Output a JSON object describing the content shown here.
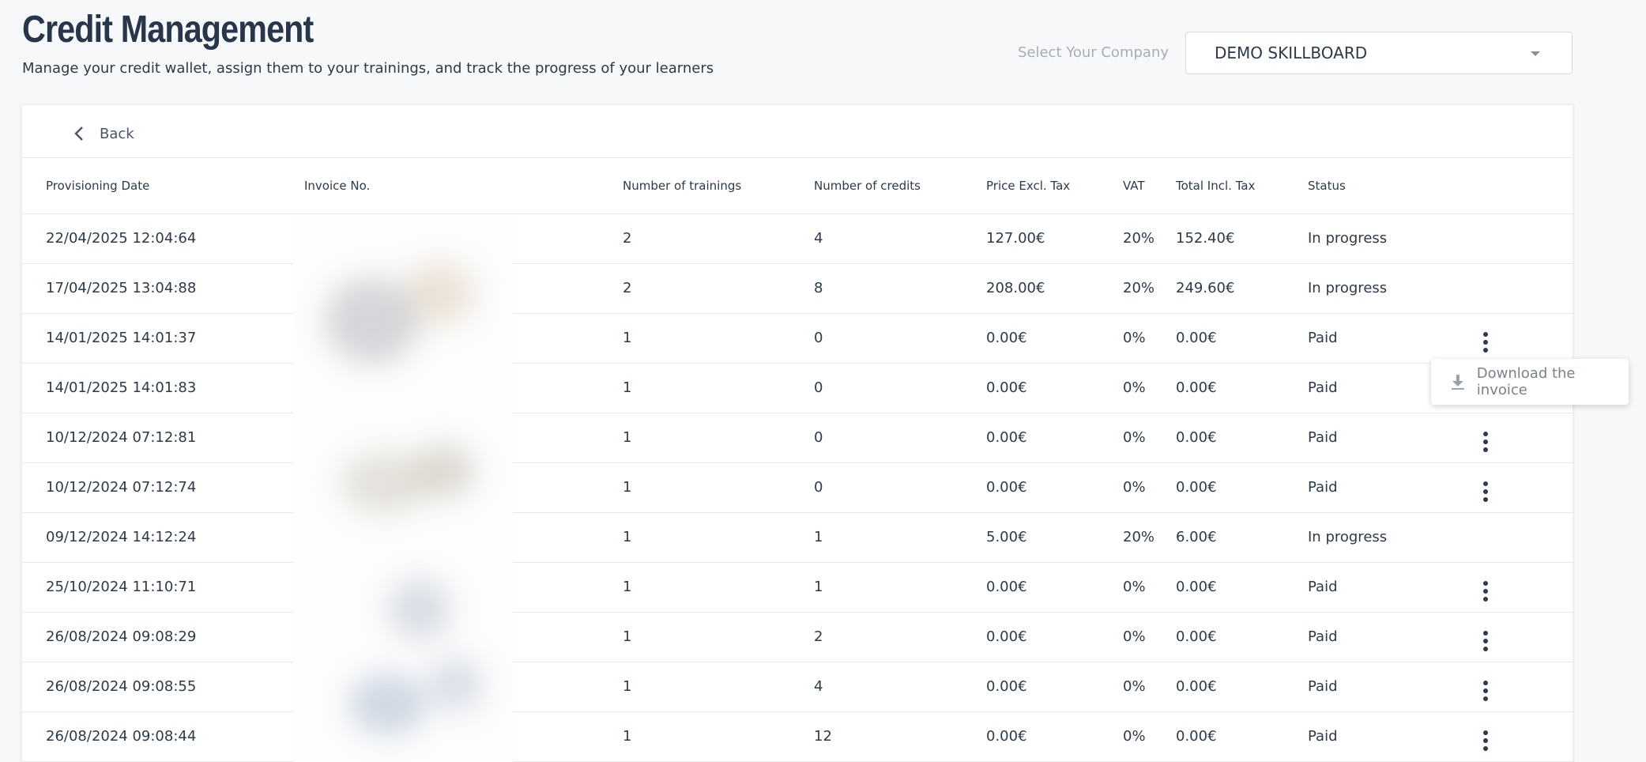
{
  "header": {
    "title": "Credit Management",
    "subtitle": "Manage your credit wallet, assign them to your trainings, and track the progress of your learners",
    "company_label": "Select Your Company",
    "company_value": "DEMO SKILLBOARD"
  },
  "back_label": "Back",
  "table": {
    "columns": [
      "Provisioning Date",
      "Invoice No.",
      "Number of trainings",
      "Number of credits",
      "Price Excl. Tax",
      "VAT",
      "Total Incl. Tax",
      "Status"
    ],
    "rows": [
      {
        "date": "22/04/2025 12:04:64",
        "invoice": "",
        "trainings": "2",
        "credits": "4",
        "price": "127.00€",
        "vat": "20%",
        "total": "152.40€",
        "status": "In progress",
        "menu": false
      },
      {
        "date": "17/04/2025 13:04:88",
        "invoice": "",
        "trainings": "2",
        "credits": "8",
        "price": "208.00€",
        "vat": "20%",
        "total": "249.60€",
        "status": "In progress",
        "menu": false
      },
      {
        "date": "14/01/2025 14:01:37",
        "invoice": "",
        "trainings": "1",
        "credits": "0",
        "price": "0.00€",
        "vat": "0%",
        "total": "0.00€",
        "status": "Paid",
        "menu": true
      },
      {
        "date": "14/01/2025 14:01:83",
        "invoice": "",
        "trainings": "1",
        "credits": "0",
        "price": "0.00€",
        "vat": "0%",
        "total": "0.00€",
        "status": "Paid",
        "menu": false
      },
      {
        "date": "10/12/2024 07:12:81",
        "invoice": "",
        "trainings": "1",
        "credits": "0",
        "price": "0.00€",
        "vat": "0%",
        "total": "0.00€",
        "status": "Paid",
        "menu": true
      },
      {
        "date": "10/12/2024 07:12:74",
        "invoice": "",
        "trainings": "1",
        "credits": "0",
        "price": "0.00€",
        "vat": "0%",
        "total": "0.00€",
        "status": "Paid",
        "menu": true
      },
      {
        "date": "09/12/2024 14:12:24",
        "invoice": "",
        "trainings": "1",
        "credits": "1",
        "price": "5.00€",
        "vat": "20%",
        "total": "6.00€",
        "status": "In progress",
        "menu": false
      },
      {
        "date": "25/10/2024 11:10:71",
        "invoice": "",
        "trainings": "1",
        "credits": "1",
        "price": "0.00€",
        "vat": "0%",
        "total": "0.00€",
        "status": "Paid",
        "menu": true
      },
      {
        "date": "26/08/2024 09:08:29",
        "invoice": "",
        "trainings": "1",
        "credits": "2",
        "price": "0.00€",
        "vat": "0%",
        "total": "0.00€",
        "status": "Paid",
        "menu": true
      },
      {
        "date": "26/08/2024 09:08:55",
        "invoice": "",
        "trainings": "1",
        "credits": "4",
        "price": "0.00€",
        "vat": "0%",
        "total": "0.00€",
        "status": "Paid",
        "menu": true
      },
      {
        "date": "26/08/2024 09:08:44",
        "invoice": "",
        "trainings": "1",
        "credits": "12",
        "price": "0.00€",
        "vat": "0%",
        "total": "0.00€",
        "status": "Paid",
        "menu": true
      }
    ]
  },
  "dropdown": {
    "item_label": "Download the invoice",
    "icon": "download-icon"
  },
  "colors": {
    "title": "#27364a",
    "text": "#2d3a4a",
    "muted": "#a7adb5",
    "background": "#f7f8f9"
  }
}
